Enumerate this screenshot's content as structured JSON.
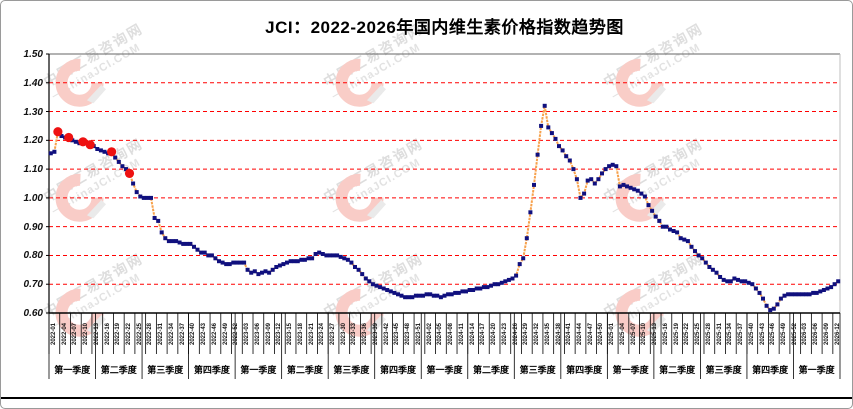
{
  "title": "JCI：2022-2026年国内维生素价格指数趋势图",
  "watermark": {
    "cn": "中国汇易咨询网",
    "en": "—ChinaJCI.COM"
  },
  "colors": {
    "grid": "#FF0000",
    "axis": "#000000",
    "plot_border": "#bfbfbf",
    "line": "#F7A14C",
    "point": "#10107E",
    "highlight": "#EE1111",
    "title_text": "#000000"
  },
  "chart_data": {
    "type": "line",
    "title": "JCI：2022-2026年国内维生素价格指数趋势图",
    "xlabel": "",
    "ylabel": "",
    "ylim": [
      0.6,
      1.5
    ],
    "grid": "horizontal-red-dashed",
    "legend_position": "none",
    "y_tick_labels": [
      "1.50",
      "1.40",
      "1.30",
      "1.20",
      "1.10",
      "1.00",
      "0.90",
      "0.80",
      "0.70",
      "0.60"
    ],
    "x_unit": "week (weekly index values, 2022 W1 - 2026 W13)",
    "quarter_labels": [
      "第一季度",
      "第二季度",
      "第三季度",
      "第四季度",
      "第一季度",
      "第二季度",
      "第三季度",
      "第四季度",
      "第一季度",
      "第二季度",
      "第三季度",
      "第四季度",
      "第一季度",
      "第二季度",
      "第三季度",
      "第四季度",
      "第一季度"
    ],
    "x_tick_labels": [
      "2022-01",
      "2022-04",
      "2022-07",
      "2022-10",
      "2022-13",
      "2022-16",
      "2022-19",
      "2022-22",
      "2022-25",
      "2022-28",
      "2022-31",
      "2022-34",
      "2022-37",
      "2022-40",
      "2022-43",
      "2022-46",
      "2022-49",
      "2022-52",
      "2023-03",
      "2023-06",
      "2023-09",
      "2023-12",
      "2023-15",
      "2023-18",
      "2023-21",
      "2023-24",
      "2023-27",
      "2023-30",
      "2023-33",
      "2023-36",
      "2023-39",
      "2023-42",
      "2023-45",
      "2023-48",
      "2023-51",
      "2024-02",
      "2024-05",
      "2024-08",
      "2024-11",
      "2024-14",
      "2024-17",
      "2024-20",
      "2024-23",
      "2024-26",
      "2024-29",
      "2024-32",
      "2024-35",
      "2024-38",
      "2024-41",
      "2024-44",
      "2024-47",
      "2024-50",
      "2025-01",
      "2025-04",
      "2025-07",
      "2025-10",
      "2025-13",
      "2025-16",
      "2025-19",
      "2025-22",
      "2025-25",
      "2025-28",
      "2025-31",
      "2025-34",
      "2025-37",
      "2025-40",
      "2025-43",
      "2025-46",
      "2025-49",
      "2025-52",
      "2026-03",
      "2026-06",
      "2026-09",
      "2026-12"
    ],
    "x_tick_every_n_weeks": 3,
    "values": [
      1.155,
      1.16,
      1.23,
      1.215,
      1.21,
      1.21,
      1.2,
      1.195,
      1.19,
      1.195,
      1.19,
      1.185,
      1.18,
      1.17,
      1.165,
      1.16,
      1.155,
      1.16,
      1.14,
      1.125,
      1.11,
      1.1,
      1.085,
      1.05,
      1.02,
      1.005,
      1.0,
      1.0,
      1.0,
      0.93,
      0.92,
      0.88,
      0.86,
      0.85,
      0.85,
      0.85,
      0.845,
      0.84,
      0.84,
      0.84,
      0.83,
      0.82,
      0.81,
      0.81,
      0.8,
      0.8,
      0.79,
      0.78,
      0.775,
      0.77,
      0.77,
      0.775,
      0.775,
      0.775,
      0.775,
      0.75,
      0.74,
      0.745,
      0.735,
      0.74,
      0.745,
      0.74,
      0.75,
      0.76,
      0.765,
      0.77,
      0.775,
      0.78,
      0.78,
      0.78,
      0.785,
      0.785,
      0.79,
      0.79,
      0.805,
      0.81,
      0.805,
      0.8,
      0.8,
      0.8,
      0.8,
      0.795,
      0.79,
      0.785,
      0.775,
      0.76,
      0.75,
      0.735,
      0.72,
      0.71,
      0.7,
      0.695,
      0.69,
      0.685,
      0.68,
      0.675,
      0.67,
      0.665,
      0.66,
      0.655,
      0.655,
      0.655,
      0.66,
      0.66,
      0.66,
      0.665,
      0.665,
      0.66,
      0.66,
      0.655,
      0.66,
      0.665,
      0.665,
      0.67,
      0.67,
      0.675,
      0.675,
      0.68,
      0.68,
      0.685,
      0.685,
      0.69,
      0.69,
      0.695,
      0.7,
      0.7,
      0.705,
      0.71,
      0.715,
      0.72,
      0.73,
      0.77,
      0.79,
      0.86,
      0.95,
      1.045,
      1.15,
      1.25,
      1.32,
      1.245,
      1.225,
      1.205,
      1.18,
      1.165,
      1.145,
      1.13,
      1.1,
      1.065,
      1.0,
      1.015,
      1.06,
      1.065,
      1.05,
      1.065,
      1.085,
      1.1,
      1.11,
      1.115,
      1.11,
      1.04,
      1.045,
      1.04,
      1.035,
      1.03,
      1.025,
      1.015,
      1.005,
      0.975,
      0.955,
      0.935,
      0.92,
      0.9,
      0.9,
      0.89,
      0.885,
      0.88,
      0.86,
      0.855,
      0.85,
      0.83,
      0.815,
      0.8,
      0.79,
      0.775,
      0.76,
      0.75,
      0.74,
      0.725,
      0.715,
      0.71,
      0.71,
      0.72,
      0.715,
      0.71,
      0.71,
      0.705,
      0.7,
      0.685,
      0.67,
      0.65,
      0.625,
      0.61,
      0.615,
      0.63,
      0.65,
      0.66,
      0.665,
      0.665,
      0.665,
      0.665,
      0.665,
      0.665,
      0.665,
      0.67,
      0.67,
      0.675,
      0.68,
      0.685,
      0.69,
      0.7,
      0.71
    ],
    "highlight_point_weeks": [
      3,
      6,
      10,
      12,
      18,
      23
    ],
    "annotations": "red enlarged markers on early-2022 weeks; navy square weekly markers; orange connector line"
  }
}
